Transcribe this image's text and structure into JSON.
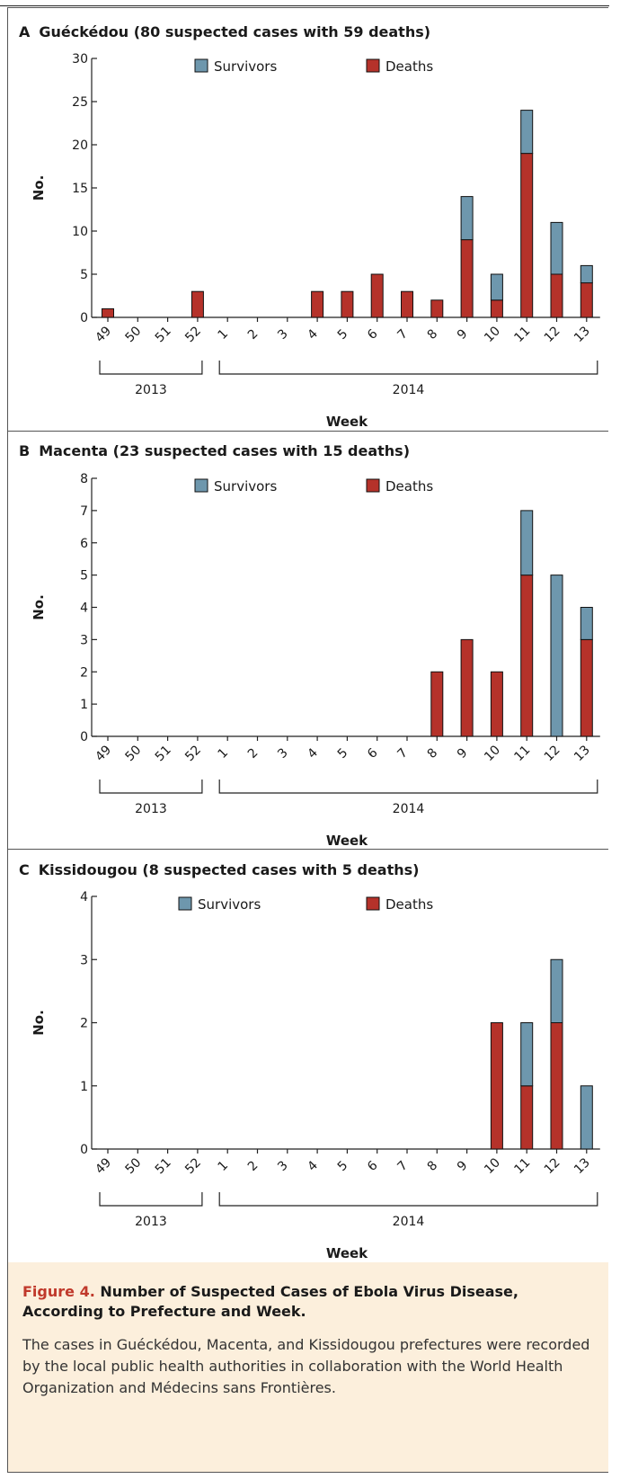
{
  "colors": {
    "survivors": "#6e97ad",
    "deaths": "#b5322a"
  },
  "legend": {
    "survivors": "Survivors",
    "deaths": "Deaths"
  },
  "chart_data": [
    {
      "type": "bar",
      "panel_letter": "A",
      "title": "Guéckédou (80 suspected cases with 59 deaths)",
      "categories": [
        "49",
        "50",
        "51",
        "52",
        "1",
        "2",
        "3",
        "4",
        "5",
        "6",
        "7",
        "8",
        "9",
        "10",
        "11",
        "12",
        "13"
      ],
      "years": [
        {
          "label": "2013",
          "from": "49",
          "to": "52"
        },
        {
          "label": "2014",
          "from": "1",
          "to": "13"
        }
      ],
      "series": [
        {
          "name": "Deaths",
          "values": [
            1,
            0,
            0,
            3,
            0,
            0,
            0,
            3,
            3,
            5,
            3,
            2,
            9,
            2,
            19,
            5,
            4
          ]
        },
        {
          "name": "Survivors",
          "values": [
            0,
            0,
            0,
            0,
            0,
            0,
            0,
            0,
            0,
            0,
            0,
            0,
            5,
            3,
            5,
            6,
            2
          ]
        }
      ],
      "stacked": true,
      "xlabel": "Week",
      "ylabel": "No.",
      "ylim": [
        0,
        30
      ],
      "yticks": [
        0,
        5,
        10,
        15,
        20,
        25,
        30
      ],
      "grid": false,
      "legend_position": "top"
    },
    {
      "type": "bar",
      "panel_letter": "B",
      "title": "Macenta (23 suspected cases with 15 deaths)",
      "categories": [
        "49",
        "50",
        "51",
        "52",
        "1",
        "2",
        "3",
        "4",
        "5",
        "6",
        "7",
        "8",
        "9",
        "10",
        "11",
        "12",
        "13"
      ],
      "years": [
        {
          "label": "2013",
          "from": "49",
          "to": "52"
        },
        {
          "label": "2014",
          "from": "1",
          "to": "13"
        }
      ],
      "series": [
        {
          "name": "Deaths",
          "values": [
            0,
            0,
            0,
            0,
            0,
            0,
            0,
            0,
            0,
            0,
            0,
            2,
            3,
            2,
            5,
            0,
            3
          ]
        },
        {
          "name": "Survivors",
          "values": [
            0,
            0,
            0,
            0,
            0,
            0,
            0,
            0,
            0,
            0,
            0,
            0,
            0,
            0,
            2,
            5,
            1
          ]
        }
      ],
      "stacked": true,
      "xlabel": "Week",
      "ylabel": "No.",
      "ylim": [
        0,
        8
      ],
      "yticks": [
        0,
        1,
        2,
        3,
        4,
        5,
        6,
        7,
        8
      ],
      "grid": false,
      "legend_position": "top"
    },
    {
      "type": "bar",
      "panel_letter": "C",
      "title": "Kissidougou (8 suspected cases with 5 deaths)",
      "categories": [
        "49",
        "50",
        "51",
        "52",
        "1",
        "2",
        "3",
        "4",
        "5",
        "6",
        "7",
        "8",
        "9",
        "10",
        "11",
        "12",
        "13"
      ],
      "years": [
        {
          "label": "2013",
          "from": "49",
          "to": "52"
        },
        {
          "label": "2014",
          "from": "1",
          "to": "13"
        }
      ],
      "series": [
        {
          "name": "Deaths",
          "values": [
            0,
            0,
            0,
            0,
            0,
            0,
            0,
            0,
            0,
            0,
            0,
            0,
            0,
            2,
            1,
            2,
            0
          ]
        },
        {
          "name": "Survivors",
          "values": [
            0,
            0,
            0,
            0,
            0,
            0,
            0,
            0,
            0,
            0,
            0,
            0,
            0,
            0,
            1,
            1,
            1
          ]
        }
      ],
      "stacked": true,
      "xlabel": "Week",
      "ylabel": "No.",
      "ylim": [
        0,
        4
      ],
      "yticks": [
        0,
        1,
        2,
        3,
        4
      ],
      "grid": false,
      "legend_position": "top"
    }
  ],
  "caption": {
    "label": "Figure 4.",
    "title": "Number of Suspected Cases of Ebola Virus Disease, According to Prefecture and Week.",
    "body": "The cases in Guéckédou, Macenta, and Kissidougou prefectures were recorded by the local public health authorities in collaboration with the World Health Organization and Médecins sans Frontières."
  }
}
